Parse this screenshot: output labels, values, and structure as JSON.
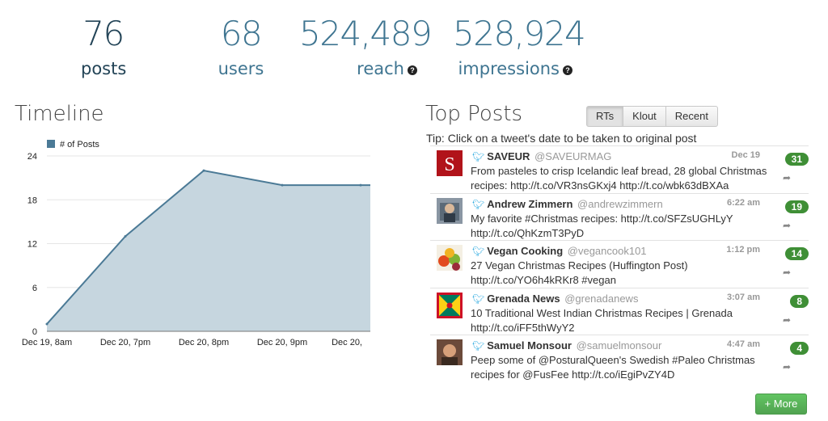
{
  "stats": {
    "posts": {
      "value": "76",
      "label": "posts"
    },
    "users": {
      "value": "68",
      "label": "users"
    },
    "reach": {
      "value": "524,489",
      "label": "reach"
    },
    "impressions": {
      "value": "528,924",
      "label": "impressions"
    }
  },
  "timeline": {
    "title": "Timeline",
    "chart_data": {
      "type": "area",
      "series": [
        {
          "name": "# of Posts",
          "values": [
            1,
            13,
            22,
            20,
            20
          ]
        }
      ],
      "x": [
        "Dec 19, 8am",
        "Dec 20, 7pm",
        "Dec 20, 8pm",
        "Dec 20, 9pm",
        "Dec 20,"
      ],
      "yticks": [
        0,
        6,
        12,
        18,
        24
      ],
      "ylim": [
        0,
        24
      ],
      "legend": "top-left",
      "grid": "horizontal",
      "colors": {
        "fill": "#c6d6df",
        "line": "#4b7a96"
      }
    }
  },
  "top_posts": {
    "title": "Top Posts",
    "tabs": [
      "RTs",
      "Klout",
      "Recent"
    ],
    "active_tab": "RTs",
    "tip": "Tip: Click on a tweet's date to be taken to original post",
    "items": [
      {
        "name": "SAVEUR",
        "handle": "@SAVEURMAG",
        "time": "Dec 19",
        "text": "From pasteles to crisp Icelandic leaf bread, 28 global Christmas recipes: http://t.co/VR3nsGKxj4 http://t.co/wbk63dBXAa",
        "count": "31",
        "avatar": "saveur-logo"
      },
      {
        "name": "Andrew Zimmern",
        "handle": "@andrewzimmern",
        "time": "6:22 am",
        "text": "My favorite #Christmas recipes: http://t.co/SFZsUGHLyY http://t.co/QhKzmT3PyD",
        "count": "19",
        "avatar": "person-photo"
      },
      {
        "name": "Vegan Cooking",
        "handle": "@vegancook101",
        "time": "1:12 pm",
        "text": "27 Vegan Christmas Recipes (Huffington Post) http://t.co/YO6h4kRKr8 #vegan",
        "count": "14",
        "avatar": "vegetables-photo"
      },
      {
        "name": "Grenada News",
        "handle": "@grenadanews",
        "time": "3:07 am",
        "text": "10 Traditional West Indian Christmas Recipes | Grenada http://t.co/iFF5thWyY2",
        "count": "8",
        "avatar": "grenada-flag"
      },
      {
        "name": "Samuel Monsour",
        "handle": "@samuelmonsour",
        "time": "4:47 am",
        "text": "Peep some of @PosturalQueen's Swedish #Paleo Christmas recipes for @FusFee http://t.co/iEgiPvZY4D",
        "count": "4",
        "avatar": "person-photo"
      }
    ],
    "more_label": "+ More"
  },
  "icons": {
    "bird": "twitter-bird-icon",
    "share": "retweet-arrow-icon",
    "help": "question-icon"
  }
}
